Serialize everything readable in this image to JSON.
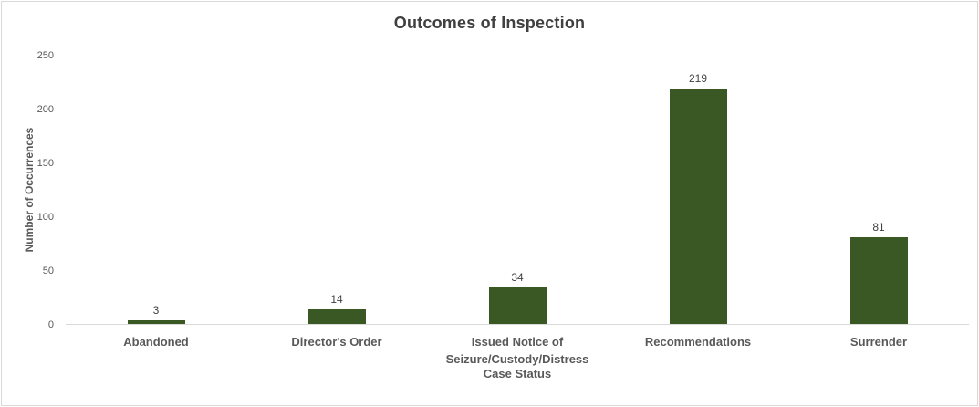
{
  "chart_data": {
    "type": "bar",
    "title": "Outcomes of Inspection",
    "xlabel": "Case Status",
    "ylabel": "Number of Occurrences",
    "categories": [
      "Abandoned",
      "Director's Order",
      "Issued Notice of Seizure/Custody/Distress",
      "Recommendations",
      "Surrender"
    ],
    "values": [
      3,
      14,
      34,
      219,
      81
    ],
    "data_labels": [
      "3",
      "14",
      "34",
      "219",
      "81"
    ],
    "ylim": [
      0,
      250
    ],
    "yticks": [
      0,
      50,
      100,
      150,
      200,
      250
    ],
    "grid": false,
    "legend": false,
    "colors": {
      "bar": "#3a5824",
      "title_text": "#404040",
      "axis_text": "#595959",
      "data_label_text": "#404040",
      "axis_line": "#d9d9d9",
      "chart_border": "#d9d9d9",
      "background": "#ffffff"
    }
  }
}
